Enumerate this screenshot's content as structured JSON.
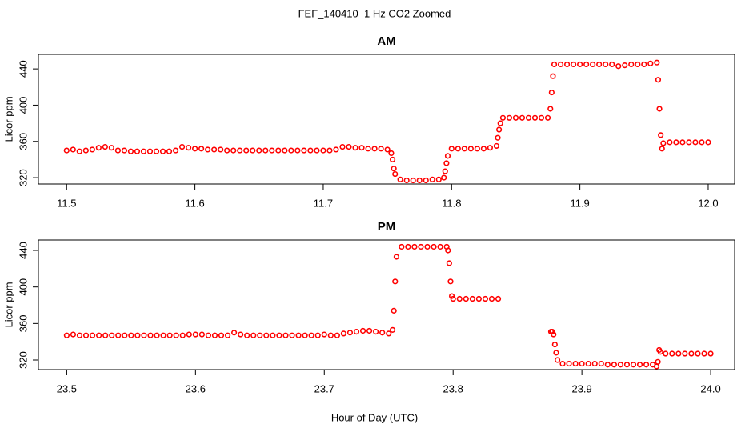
{
  "title": "FEF_140410  1 Hz CO2 Zoomed",
  "x_label": "Hour of Day (UTC)",
  "chart_data": [
    {
      "type": "scatter",
      "title": "AM",
      "y_label": "Licor ppm",
      "color": "#ff0000",
      "x": [
        11.5,
        11.505,
        11.51,
        11.515,
        11.52,
        11.525,
        11.53,
        11.535,
        11.54,
        11.545,
        11.55,
        11.555,
        11.56,
        11.565,
        11.57,
        11.575,
        11.58,
        11.585,
        11.59,
        11.595,
        11.6,
        11.605,
        11.61,
        11.615,
        11.62,
        11.625,
        11.63,
        11.635,
        11.64,
        11.645,
        11.65,
        11.655,
        11.66,
        11.665,
        11.67,
        11.675,
        11.68,
        11.685,
        11.69,
        11.695,
        11.7,
        11.705,
        11.71,
        11.715,
        11.72,
        11.725,
        11.73,
        11.735,
        11.74,
        11.745,
        11.75,
        11.753,
        11.754,
        11.755,
        11.756,
        11.76,
        11.765,
        11.77,
        11.775,
        11.78,
        11.785,
        11.79,
        11.794,
        11.795,
        11.796,
        11.797,
        11.8,
        11.805,
        11.81,
        11.815,
        11.82,
        11.825,
        11.83,
        11.835,
        11.836,
        11.837,
        11.838,
        11.84,
        11.845,
        11.85,
        11.855,
        11.86,
        11.865,
        11.87,
        11.875,
        11.877,
        11.878,
        11.879,
        11.88,
        11.885,
        11.89,
        11.895,
        11.9,
        11.905,
        11.91,
        11.915,
        11.92,
        11.925,
        11.93,
        11.935,
        11.94,
        11.945,
        11.95,
        11.955,
        11.96,
        11.961,
        11.962,
        11.963,
        11.964,
        11.965,
        11.97,
        11.975,
        11.98,
        11.985,
        11.99,
        11.995,
        12.0
      ],
      "values": [
        350,
        351,
        349,
        350,
        351,
        353,
        354,
        353,
        350,
        350,
        349,
        349,
        349,
        349,
        349,
        349,
        349,
        350,
        354,
        353,
        352,
        352,
        351,
        351,
        351,
        350,
        350,
        350,
        350,
        350,
        350,
        350,
        350,
        350,
        350,
        350,
        350,
        350,
        350,
        350,
        350,
        350,
        351,
        354,
        354,
        353,
        353,
        352,
        352,
        352,
        351,
        347,
        340,
        330,
        324,
        318,
        317,
        317,
        317,
        317,
        318,
        318,
        320,
        327,
        336,
        344,
        352,
        352,
        352,
        352,
        352,
        352,
        353,
        355,
        364,
        373,
        380,
        386,
        386,
        386,
        386,
        386,
        386,
        386,
        386,
        396,
        414,
        432,
        445,
        445,
        445,
        445,
        445,
        445,
        445,
        445,
        445,
        445,
        443,
        444,
        445,
        445,
        445,
        446,
        447,
        428,
        396,
        367,
        352,
        358,
        359,
        359,
        359,
        359,
        359,
        359,
        359
      ],
      "xlim": [
        11.478,
        12.0206
      ],
      "ylim": [
        313,
        456
      ],
      "xticks": [
        11.5,
        11.6,
        11.7,
        11.8,
        11.9,
        {
          "value": 12,
          "label": "12.0"
        }
      ],
      "yticks": [
        320,
        360,
        400,
        440
      ]
    },
    {
      "type": "scatter",
      "title": "PM",
      "y_label": "Licor ppm",
      "color": "#ff0000",
      "x": [
        23.5,
        23.505,
        23.51,
        23.515,
        23.52,
        23.525,
        23.53,
        23.535,
        23.54,
        23.545,
        23.55,
        23.555,
        23.56,
        23.565,
        23.57,
        23.575,
        23.58,
        23.585,
        23.59,
        23.595,
        23.6,
        23.605,
        23.61,
        23.615,
        23.62,
        23.625,
        23.63,
        23.635,
        23.64,
        23.645,
        23.65,
        23.655,
        23.66,
        23.665,
        23.67,
        23.675,
        23.68,
        23.685,
        23.69,
        23.695,
        23.7,
        23.705,
        23.71,
        23.715,
        23.72,
        23.725,
        23.73,
        23.735,
        23.74,
        23.745,
        23.75,
        23.753,
        23.754,
        23.755,
        23.756,
        23.76,
        23.765,
        23.77,
        23.775,
        23.78,
        23.785,
        23.79,
        23.795,
        23.796,
        23.797,
        23.798,
        23.799,
        23.8,
        23.805,
        23.81,
        23.815,
        23.82,
        23.825,
        23.83,
        23.835,
        23.876,
        23.877,
        23.878,
        23.879,
        23.88,
        23.881,
        23.885,
        23.89,
        23.895,
        23.9,
        23.905,
        23.91,
        23.915,
        23.92,
        23.925,
        23.93,
        23.935,
        23.94,
        23.945,
        23.95,
        23.955,
        23.958,
        23.959,
        23.96,
        23.961,
        23.965,
        23.97,
        23.975,
        23.98,
        23.985,
        23.99,
        23.995,
        24.0
      ],
      "values": [
        347,
        348,
        347,
        347,
        347,
        347,
        347,
        347,
        347,
        347,
        347,
        347,
        347,
        347,
        347,
        347,
        347,
        347,
        347,
        348,
        348,
        348,
        347,
        347,
        347,
        347,
        350,
        348,
        347,
        347,
        347,
        347,
        347,
        347,
        347,
        347,
        347,
        347,
        347,
        347,
        348,
        347,
        347,
        349,
        350,
        351,
        352,
        352,
        351,
        350,
        349,
        353,
        374,
        406,
        433,
        444,
        444,
        444,
        444,
        444,
        444,
        444,
        444,
        440,
        426,
        406,
        390,
        387,
        387,
        387,
        387,
        387,
        387,
        387,
        387,
        351,
        351,
        348,
        337,
        328,
        320,
        316,
        316,
        316,
        316,
        316,
        316,
        316,
        315,
        315,
        315,
        315,
        315,
        315,
        315,
        315,
        313,
        318,
        331,
        329,
        327,
        327,
        327,
        327,
        327,
        327,
        327,
        327
      ],
      "xlim": [
        23.478,
        24.0186
      ],
      "ylim": [
        309.5,
        451.4
      ],
      "xticks": [
        23.5,
        23.6,
        23.7,
        23.8,
        23.9,
        {
          "value": 24,
          "label": "24.0"
        }
      ],
      "yticks": [
        320,
        360,
        400,
        440
      ]
    }
  ]
}
